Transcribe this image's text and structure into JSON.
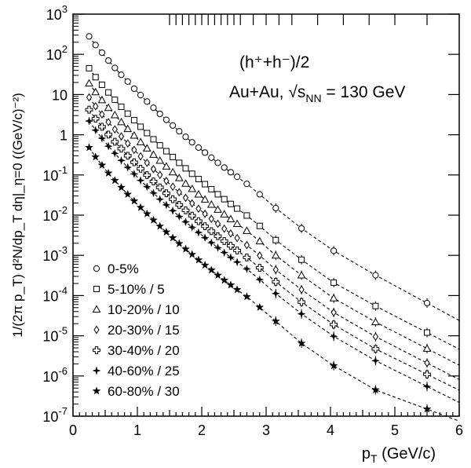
{
  "chart_data": {
    "type": "scatter",
    "title_lines": {
      "particle": "(h⁺+h⁻)/2",
      "system_prefix": "Au+Au, ",
      "sqrt_symbol": "√",
      "s_base": "s",
      "s_sub": "NN",
      "energy": " = 130 GeV"
    },
    "xlabel": {
      "base": "p",
      "sub": "T",
      "unit": " (GeV/c)"
    },
    "ylabel": "1/(2π p_T) d²N/dp_T dη|_η=0 ((GeV/c)⁻²)",
    "xlim": [
      0,
      6
    ],
    "ylim": [
      1e-07,
      1000
    ],
    "yscale": "log",
    "x_ticks": [
      "0",
      "1",
      "2",
      "3",
      "4",
      "5",
      "6"
    ],
    "y_ticks": [
      {
        "base": "10",
        "exp": "3"
      },
      {
        "base": "10",
        "exp": "2"
      },
      {
        "base": "10",
        "exp": ""
      },
      {
        "base": "1",
        "exp": ""
      },
      {
        "base": "10",
        "exp": "-1"
      },
      {
        "base": "10",
        "exp": "-2"
      },
      {
        "base": "10",
        "exp": "-3"
      },
      {
        "base": "10",
        "exp": "-4"
      },
      {
        "base": "10",
        "exp": "-5"
      },
      {
        "base": "10",
        "exp": "-6"
      },
      {
        "base": "10",
        "exp": "-7"
      }
    ],
    "bin_edges_top": [
      1.5,
      1.6,
      1.7,
      1.8,
      1.9,
      2.0,
      2.1,
      2.2,
      2.3,
      2.4,
      2.5,
      2.6,
      2.8,
      3.0,
      3.2,
      3.4,
      3.8,
      4.2,
      4.6,
      5.0,
      5.5
    ],
    "x": [
      0.25,
      0.35,
      0.45,
      0.55,
      0.65,
      0.75,
      0.85,
      0.95,
      1.05,
      1.15,
      1.25,
      1.35,
      1.45,
      1.55,
      1.65,
      1.75,
      1.85,
      1.95,
      2.05,
      2.15,
      2.25,
      2.35,
      2.45,
      2.55,
      2.7,
      2.9,
      3.15,
      3.55,
      4.05,
      4.7,
      5.5
    ],
    "legend_position": "bottom-left",
    "series": [
      {
        "name": "0-5%",
        "marker": "circle",
        "y": [
          280,
          170,
          110,
          70,
          46,
          31,
          21,
          14,
          9.7,
          6.7,
          4.7,
          3.3,
          2.35,
          1.7,
          1.22,
          0.89,
          0.65,
          0.48,
          0.36,
          0.27,
          0.2,
          0.153,
          0.117,
          0.09,
          0.06,
          0.033,
          0.015,
          0.0047,
          0.0013,
          0.00032,
          6.5e-05
        ]
      },
      {
        "name": "5-10% / 5",
        "marker": "square",
        "y": [
          45,
          27,
          17.5,
          11.3,
          7.4,
          4.95,
          3.35,
          2.3,
          1.58,
          1.1,
          0.77,
          0.545,
          0.39,
          0.28,
          0.2,
          0.146,
          0.107,
          0.079,
          0.059,
          0.044,
          0.033,
          0.025,
          0.019,
          0.0146,
          0.0098,
          0.0054,
          0.0024,
          0.00078,
          0.00021,
          5.5e-05,
          1.2e-05
        ]
      },
      {
        "name": "10-20% / 10",
        "marker": "triangle",
        "y": [
          19,
          11.5,
          7.3,
          4.7,
          3.1,
          2.07,
          1.4,
          0.96,
          0.66,
          0.46,
          0.32,
          0.228,
          0.163,
          0.117,
          0.084,
          0.061,
          0.045,
          0.033,
          0.0246,
          0.0184,
          0.0138,
          0.0105,
          0.008,
          0.0061,
          0.0041,
          0.00225,
          0.001,
          0.00032,
          8.6e-05,
          2.2e-05,
          4.8e-06
        ]
      },
      {
        "name": "20-30% / 15",
        "marker": "diamond",
        "y": [
          8.5,
          5.1,
          3.2,
          2.06,
          1.36,
          0.91,
          0.61,
          0.42,
          0.29,
          0.2,
          0.14,
          0.1,
          0.071,
          0.051,
          0.037,
          0.027,
          0.0197,
          0.0145,
          0.0108,
          0.0081,
          0.0061,
          0.0046,
          0.0035,
          0.0027,
          0.0018,
          0.00099,
          0.00044,
          0.00014,
          3.8e-05,
          9.5e-06,
          2.1e-06
        ]
      },
      {
        "name": "30-40% / 20",
        "marker": "cross",
        "y": [
          4.2,
          2.5,
          1.58,
          1.01,
          0.67,
          0.45,
          0.3,
          0.207,
          0.143,
          0.099,
          0.069,
          0.049,
          0.035,
          0.025,
          0.018,
          0.0132,
          0.0097,
          0.0071,
          0.0053,
          0.004,
          0.003,
          0.00227,
          0.00173,
          0.00132,
          0.00089,
          0.00049,
          0.00022,
          6.9e-05,
          1.9e-05,
          4.7e-06,
          1.1e-06
        ]
      },
      {
        "name": "40-60% / 25",
        "marker": "star4",
        "y": [
          2.2,
          1.3,
          0.82,
          0.52,
          0.345,
          0.23,
          0.155,
          0.106,
          0.073,
          0.051,
          0.0355,
          0.025,
          0.018,
          0.0129,
          0.0093,
          0.0068,
          0.005,
          0.0037,
          0.00275,
          0.00206,
          0.00155,
          0.00117,
          0.00089,
          0.00068,
          0.00046,
          0.00025,
          0.000112,
          3.5e-05,
          9.7e-06,
          2.4e-06,
          5.5e-07
        ]
      },
      {
        "name": "60-80% / 30",
        "marker": "star5",
        "y": [
          0.48,
          0.28,
          0.175,
          0.111,
          0.073,
          0.049,
          0.033,
          0.0225,
          0.0155,
          0.0108,
          0.0075,
          0.0053,
          0.0038,
          0.00272,
          0.00196,
          0.00143,
          0.00105,
          0.00077,
          0.00057,
          0.00043,
          0.00032,
          0.00024,
          0.000183,
          0.00014,
          9.4e-05,
          5.1e-05,
          2.3e-05,
          6.5e-06,
          1.8e-06,
          4.5e-07,
          1.5e-07
        ]
      }
    ]
  }
}
